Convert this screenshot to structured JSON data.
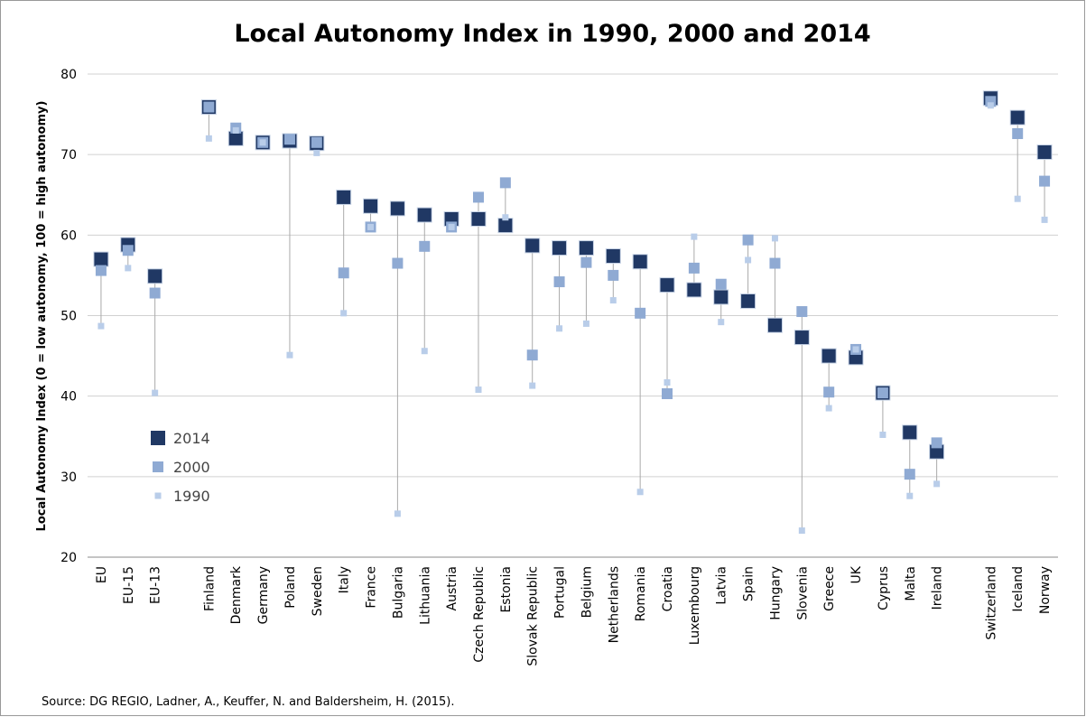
{
  "chart_data": {
    "type": "dot-range",
    "title": "Local Autonomy Index in 1990, 2000 and 2014",
    "y_label": "Local Autonomy  Index (0 = low autonomy, 100 = high autonomy)",
    "source": "Source: DG REGIO,    Ladner, A., Keuffer, N. and Baldersheim, H. (2015).",
    "categories": [
      "EU",
      "EU-15",
      "EU-13",
      null,
      "Finland",
      "Denmark",
      "Germany",
      "Poland",
      "Sweden",
      "Italy",
      "France",
      "Bulgaria",
      "Lithuania",
      "Austria",
      "Czech Republic",
      "Estonia",
      "Slovak Republic",
      "Portugal",
      "Belgium",
      "Netherlands",
      "Romania",
      "Croatia",
      "Luxembourg",
      "Latvia",
      "Spain",
      "Hungary",
      "Slovenia",
      "Greece",
      "UK",
      "Cyprus",
      "Malta",
      "Ireland",
      null,
      "Switzerland",
      "Iceland",
      "Norway"
    ],
    "series": [
      {
        "name": "2014",
        "color": "#203864",
        "values": [
          57.0,
          58.8,
          54.9,
          null,
          75.9,
          72.0,
          71.5,
          71.7,
          71.4,
          64.7,
          63.6,
          63.3,
          62.5,
          62.0,
          62.0,
          61.2,
          58.7,
          58.4,
          58.4,
          57.4,
          56.7,
          53.8,
          53.2,
          52.3,
          51.8,
          48.8,
          47.3,
          45.0,
          44.8,
          40.4,
          35.5,
          33.1,
          null,
          77.0,
          74.6,
          70.3
        ]
      },
      {
        "name": "2000",
        "color": "#8faad3",
        "values": [
          55.6,
          58.1,
          52.8,
          null,
          75.9,
          73.3,
          71.5,
          71.9,
          71.5,
          55.3,
          61.0,
          56.5,
          58.6,
          61.0,
          64.7,
          66.5,
          45.1,
          54.2,
          56.6,
          55.0,
          50.3,
          40.3,
          55.9,
          53.9,
          59.4,
          56.5,
          50.5,
          40.5,
          45.8,
          40.4,
          30.3,
          34.2,
          null,
          76.6,
          72.6,
          66.7
        ]
      },
      {
        "name": "1990",
        "color": "#b9cde9",
        "values": [
          48.7,
          55.9,
          40.4,
          null,
          72.0,
          73.0,
          71.5,
          45.1,
          70.2,
          50.3,
          61.0,
          25.4,
          45.6,
          61.0,
          40.8,
          62.2,
          41.3,
          48.4,
          49.0,
          51.9,
          28.1,
          41.7,
          59.8,
          49.2,
          56.9,
          59.6,
          23.3,
          38.5,
          45.8,
          35.2,
          27.6,
          29.1,
          null,
          76.1,
          64.5,
          61.9
        ]
      }
    ],
    "ylim": [
      20,
      80
    ],
    "yticks": [
      20,
      30,
      40,
      50,
      60,
      70,
      80
    ],
    "grid": true
  }
}
